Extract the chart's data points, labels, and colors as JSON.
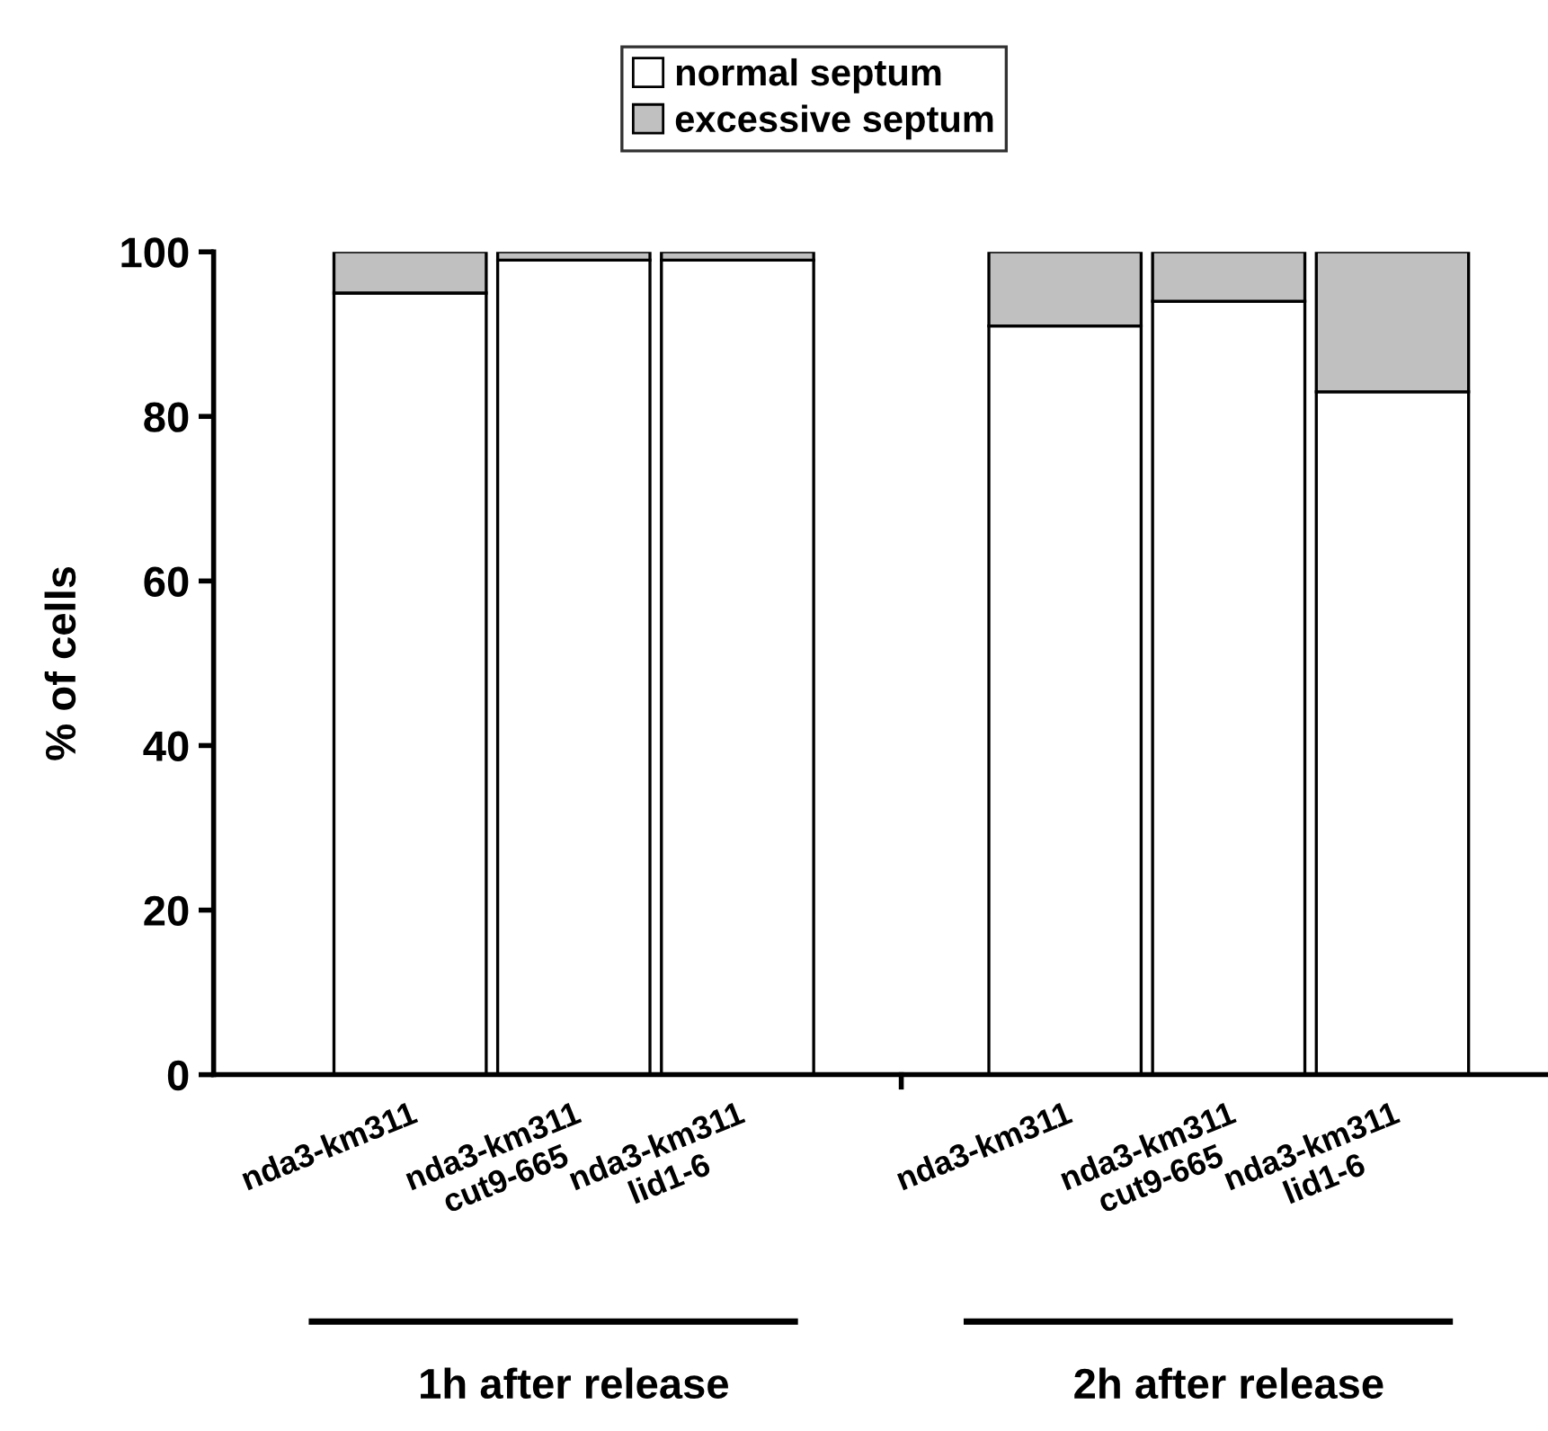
{
  "chart_data": {
    "type": "bar",
    "stacked": true,
    "ylabel": "% of cells",
    "categories": [
      "nda3-km311",
      "nda3-km311\ncut9-665",
      "nda3-km311\nlid1-6",
      null,
      "nda3-km311",
      "nda3-km311\ncut9-665",
      "nda3-km311\nlid1-6"
    ],
    "series": [
      {
        "name": "normal septum",
        "color": "#ffffff",
        "values": [
          95,
          99,
          99,
          null,
          91,
          94,
          83
        ]
      },
      {
        "name": "excessive septum",
        "color": "#c0c0c0",
        "values": [
          5,
          1,
          1,
          null,
          9,
          6,
          17
        ]
      }
    ],
    "ylim": [
      0,
      100
    ],
    "yticks": [
      0,
      20,
      40,
      60,
      80,
      100
    ],
    "grid": false,
    "legend": "top",
    "annotations": [
      "1h after release",
      "2h after release"
    ]
  }
}
